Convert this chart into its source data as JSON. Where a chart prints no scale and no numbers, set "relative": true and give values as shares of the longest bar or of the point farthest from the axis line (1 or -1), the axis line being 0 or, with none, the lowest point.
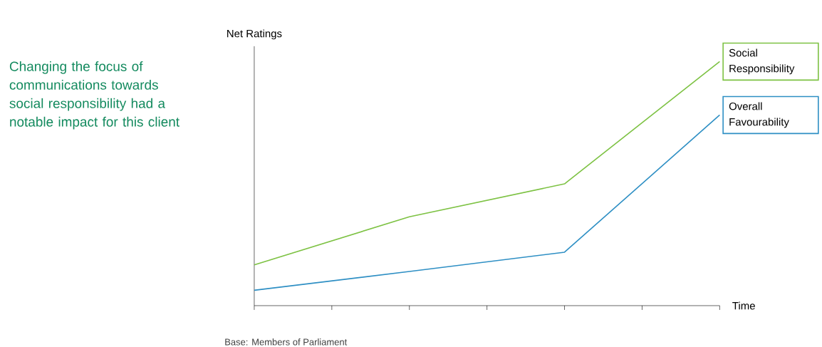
{
  "chart_data": {
    "type": "line",
    "title": "Changing the focus of communications towards social responsibility had a notable impact for this client",
    "xlabel": "Time",
    "ylabel": "Net Ratings",
    "annotations": [
      "Base: Members of Parliament"
    ],
    "relative": true,
    "categories": [
      null,
      null,
      null,
      null
    ],
    "marker": "none",
    "line_style": "solid",
    "series": [
      {
        "name": "Social Responsibility",
        "color": "#7dc243",
        "values": [
          0.167,
          0.364,
          0.499,
          1
        ]
      },
      {
        "name": "Overall Favourability",
        "color": "#2e8fc4",
        "values": [
          0.063,
          0.14,
          0.219,
          0.781
        ]
      }
    ]
  }
}
